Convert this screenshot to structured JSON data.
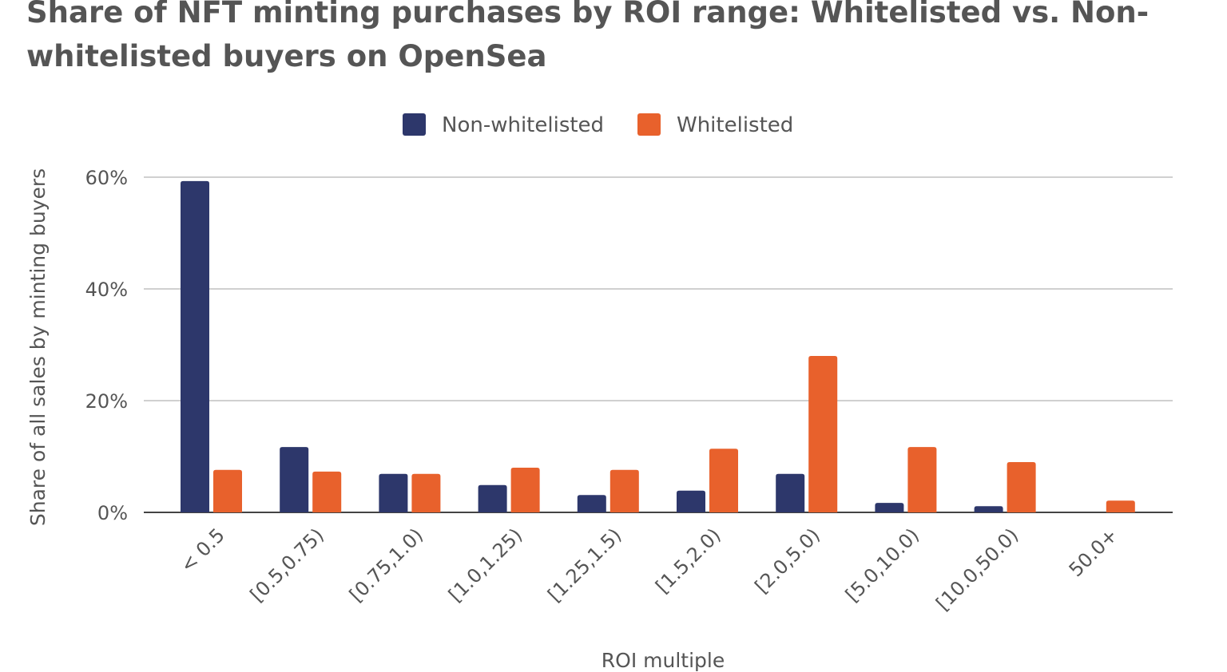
{
  "chart_data": {
    "type": "bar",
    "title": "Share of NFT minting purchases by ROI range: Whitelisted vs. Non-whitelisted buyers on OpenSea",
    "xlabel": "ROI multiple",
    "ylabel": "Share of all sales by minting buyers",
    "ylim": [
      0,
      60
    ],
    "yticks": [
      "0%",
      "20%",
      "40%",
      "60%"
    ],
    "ytick_values": [
      0,
      20,
      40,
      60
    ],
    "grid": true,
    "legend_position": "top-center",
    "categories": [
      "< 0.5",
      "[0.5,0.75)",
      "[0.75,1.0)",
      "[1.0,1.25)",
      "[1.25,1.5)",
      "[1.5,2.0)",
      "[2.0,5.0)",
      "[5.0,10.0)",
      "[10.0,50.0)",
      "50.0+"
    ],
    "series": [
      {
        "name": "Non-whitelisted",
        "color": "#2d376b",
        "values": [
          59.3,
          11.7,
          6.9,
          4.9,
          3.1,
          3.9,
          6.9,
          1.7,
          1.1,
          0
        ]
      },
      {
        "name": "Whitelisted",
        "color": "#e8612c",
        "values": [
          7.6,
          7.3,
          6.9,
          8.0,
          7.6,
          11.4,
          28.0,
          11.7,
          9.0,
          2.1
        ]
      }
    ]
  }
}
